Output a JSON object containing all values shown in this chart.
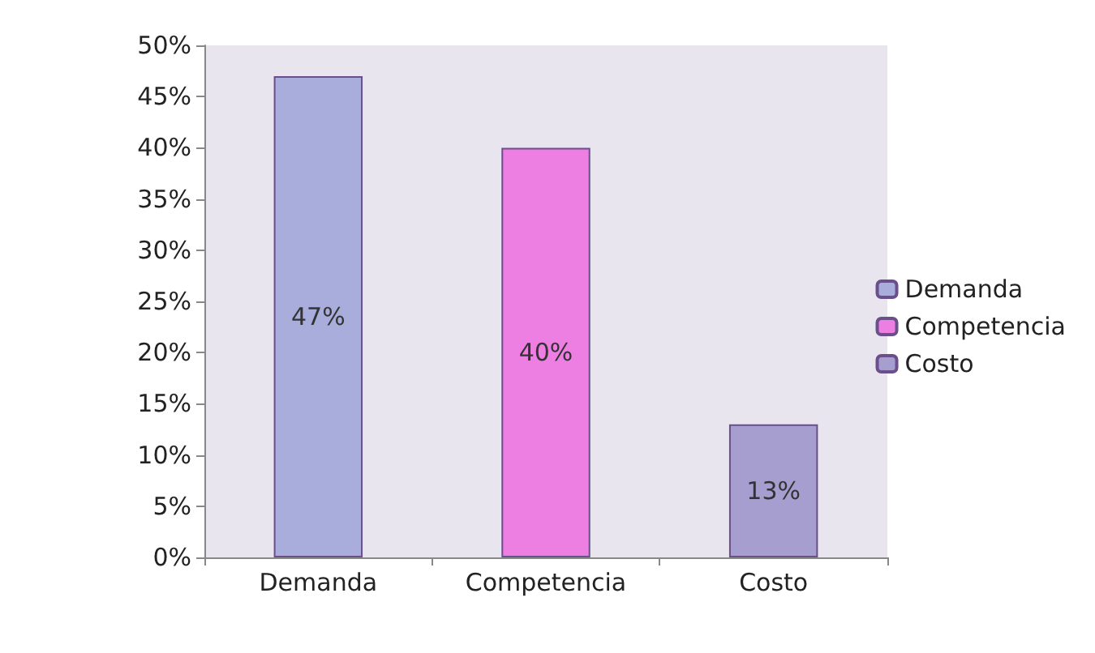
{
  "chart_data": {
    "type": "bar",
    "categories": [
      "Demanda",
      "Competencia",
      "Costo"
    ],
    "series": [
      {
        "name": "Demanda",
        "color": "#a9addc",
        "values": [
          47,
          null,
          null
        ],
        "value_labels": [
          "47%",
          null,
          null
        ]
      },
      {
        "name": "Competencia",
        "color": "#ee7fe2",
        "values": [
          null,
          40,
          null
        ],
        "value_labels": [
          null,
          "40%",
          null
        ]
      },
      {
        "name": "Costo",
        "color": "#a79ed0",
        "values": [
          null,
          null,
          13
        ],
        "value_labels": [
          null,
          null,
          "13%"
        ]
      }
    ],
    "ylim": [
      0,
      50
    ],
    "yticks": [
      {
        "value": 0,
        "label": "0%"
      },
      {
        "value": 5,
        "label": "5%"
      },
      {
        "value": 10,
        "label": "10%"
      },
      {
        "value": 15,
        "label": "15%"
      },
      {
        "value": 20,
        "label": "20%"
      },
      {
        "value": 25,
        "label": "25%"
      },
      {
        "value": 30,
        "label": "30%"
      },
      {
        "value": 35,
        "label": "35%"
      },
      {
        "value": 40,
        "label": "40%"
      },
      {
        "value": 45,
        "label": "45%"
      },
      {
        "value": 50,
        "label": "50%"
      }
    ],
    "grid": false,
    "legend": "right"
  }
}
